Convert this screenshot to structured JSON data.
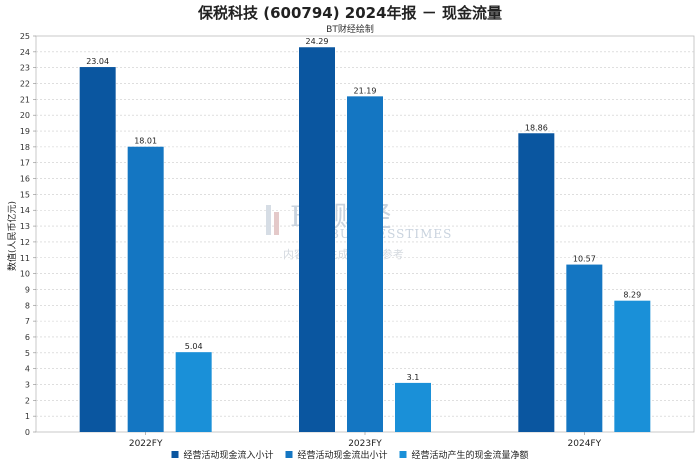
{
  "header": {
    "title": "保税科技 (600794) 2024年报 － 现金流量",
    "subtitle": "BT财经绘制"
  },
  "watermark": {
    "main": "BT财经",
    "sub": "BUSINESSTIMES",
    "note": "内容由AI生成，仅供参考"
  },
  "chart_data": {
    "type": "bar",
    "categories": [
      "2022FY",
      "2023FY",
      "2024FY"
    ],
    "series": [
      {
        "name": "经营活动现金流入小计",
        "color": "#0a56a0",
        "values": [
          23.04,
          24.29,
          18.86
        ],
        "labels": [
          "23.04",
          "24.29",
          "18.86"
        ]
      },
      {
        "name": "经营活动现金流出小计",
        "color": "#1476c2",
        "values": [
          18.01,
          21.19,
          10.57
        ],
        "labels": [
          "18.01",
          "21.19",
          "10.57"
        ]
      },
      {
        "name": "经营活动产生的现金流量净额",
        "color": "#1a90d8",
        "values": [
          5.04,
          3.1,
          8.29
        ],
        "labels": [
          "5.04",
          "3.1",
          "8.29"
        ]
      }
    ],
    "ylabel": "数值(人民币亿元)",
    "xlabel": "",
    "ylim": [
      0,
      25
    ],
    "yticks": [
      0,
      1,
      2,
      3,
      4,
      5,
      6,
      7,
      8,
      9,
      10,
      11,
      12,
      13,
      14,
      15,
      16,
      17,
      18,
      19,
      20,
      21,
      22,
      23,
      24,
      25
    ],
    "grid": true,
    "legend_position": "bottom"
  }
}
